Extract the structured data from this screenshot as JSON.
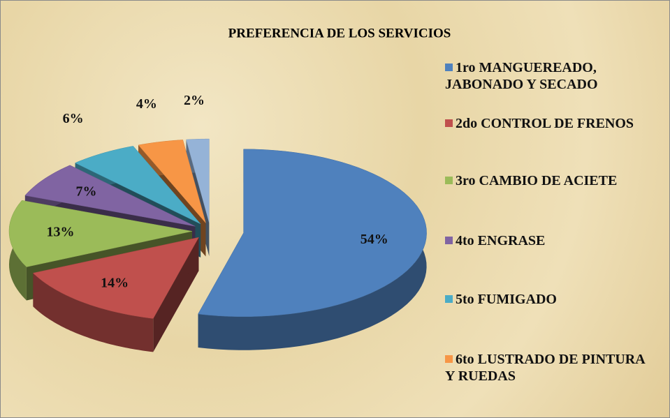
{
  "chart_data": {
    "type": "pie",
    "title": "PREFERENCIA DE LOS SERVICIOS",
    "categories": [
      "1ro MANGUEREADO, JABONADO Y SECADO",
      "2do CONTROL DE FRENOS",
      "3ro CAMBIO DE ACIETE",
      "4to ENGRASE",
      "5to FUMIGADO",
      "6to LUSTRADO DE PINTURA Y RUEDAS",
      null
    ],
    "values": [
      54,
      14,
      13,
      7,
      6,
      4,
      2
    ],
    "value_labels": [
      "54%",
      "14%",
      "13%",
      "7%",
      "6%",
      "4%",
      "2%"
    ],
    "colors": [
      "#4f81bd",
      "#c0504d",
      "#9bbb59",
      "#8064a2",
      "#4bacc6",
      "#f79646",
      "#95b3d7"
    ],
    "legend": "right"
  }
}
